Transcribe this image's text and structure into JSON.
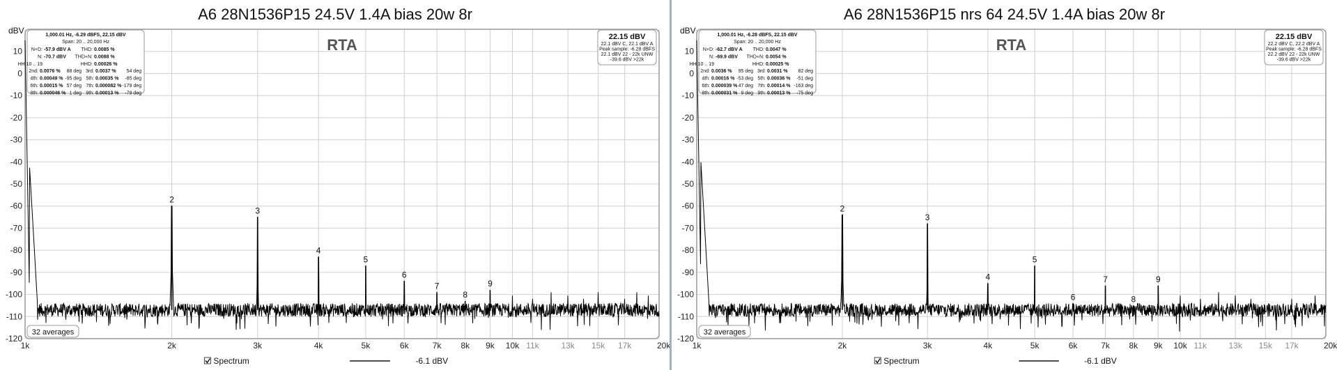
{
  "chart_data": [
    {
      "type": "line",
      "title": "A6 28N1536P15 24.5V 1.4A bias 20w 8r",
      "overlay_label": "RTA",
      "ylabel": "dBV",
      "xlabel_unit": "Hz",
      "ylim": [
        -120,
        20
      ],
      "xlim": [
        1000,
        20000
      ],
      "x_scale": "log",
      "grid": true,
      "y_ticks": [
        10,
        0,
        -10,
        -20,
        -30,
        -40,
        -50,
        -60,
        -70,
        -80,
        -90,
        -100,
        -110,
        -120
      ],
      "x_ticks": [
        {
          "value": 1000,
          "label": "1k",
          "major": true
        },
        {
          "value": 2000,
          "label": "2k",
          "major": true
        },
        {
          "value": 3000,
          "label": "3k",
          "major": true
        },
        {
          "value": 4000,
          "label": "4k",
          "major": true
        },
        {
          "value": 5000,
          "label": "5k",
          "major": true
        },
        {
          "value": 6000,
          "label": "6k",
          "major": true
        },
        {
          "value": 7000,
          "label": "7k",
          "major": true
        },
        {
          "value": 8000,
          "label": "8k",
          "major": true
        },
        {
          "value": 9000,
          "label": "9k",
          "major": true
        },
        {
          "value": 10000,
          "label": "10k",
          "major": true
        },
        {
          "value": 11000,
          "label": "11k",
          "major": false
        },
        {
          "value": 13000,
          "label": "13k",
          "major": false
        },
        {
          "value": 15000,
          "label": "15k",
          "major": false
        },
        {
          "value": 17000,
          "label": "17k",
          "major": false
        },
        {
          "value": 20000,
          "label": "20kHz",
          "major": true
        }
      ],
      "noise_floor_dBV": -107,
      "harmonics": [
        {
          "label": "2",
          "freq": 2000,
          "level": -60
        },
        {
          "label": "3",
          "freq": 3000,
          "level": -65
        },
        {
          "label": "4",
          "freq": 4000,
          "level": -83
        },
        {
          "label": "5",
          "freq": 5000,
          "level": -87
        },
        {
          "label": "6",
          "freq": 6000,
          "level": -94
        },
        {
          "label": "7",
          "freq": 7000,
          "level": -99
        },
        {
          "label": "8",
          "freq": 8000,
          "level": -103
        },
        {
          "label": "9",
          "freq": 9000,
          "level": -98
        }
      ],
      "stats": {
        "header": "1,000.01 Hz, -6.29 dBFS, 22.15 dBV",
        "span": "Span: 20 .. 20,000 Hz",
        "rows": [
          [
            "N+D:",
            "-57.9 dBV A",
            "THD:",
            "0.0085 %",
            ""
          ],
          [
            "N:",
            "-70.7 dBV",
            "THD+N:",
            "0.0088 %",
            ""
          ],
          [
            "HH 10 .. 19",
            "",
            "HHD:",
            "0.00026 %",
            ""
          ],
          [
            "2nd:",
            "0.0076 %",
            "88 deg",
            "3rd:",
            "0.0037 %",
            "54 deg"
          ],
          [
            "4th:",
            "0.00049 %",
            "-95 deg",
            "5th:",
            "0.00035 %",
            "-85 deg"
          ],
          [
            "6th:",
            "0.00015 %",
            "57 deg",
            "7th:",
            "0.000082 %",
            "-179 deg"
          ],
          [
            "8th:",
            "0.000046 %",
            "1 deg",
            "9th:",
            "0.00013 %",
            "-79 deg"
          ]
        ]
      },
      "level_box": {
        "main": "22.15 dBV",
        "lines": [
          "22.1 dBV C, 22.1 dBV A",
          "Peak sample: -6.28 dBFS",
          "22.1 dBV 22 - 22k UNW",
          "-39.6 dBV >22k"
        ]
      },
      "averages": "32 averages",
      "legend": {
        "spectrum": "Spectrum",
        "level": "-6.1 dBV"
      }
    },
    {
      "type": "line",
      "title": "A6 28N1536P15 nrs 64 24.5V 1.4A bias 20w 8r",
      "overlay_label": "RTA",
      "ylabel": "dBV",
      "xlabel_unit": "Hz",
      "ylim": [
        -120,
        20
      ],
      "xlim": [
        1000,
        20000
      ],
      "x_scale": "log",
      "grid": true,
      "y_ticks": [
        10,
        0,
        -10,
        -20,
        -30,
        -40,
        -50,
        -60,
        -70,
        -80,
        -90,
        -100,
        -110,
        -120
      ],
      "x_ticks": [
        {
          "value": 1000,
          "label": "1k",
          "major": true
        },
        {
          "value": 2000,
          "label": "2k",
          "major": true
        },
        {
          "value": 3000,
          "label": "3k",
          "major": true
        },
        {
          "value": 4000,
          "label": "4k",
          "major": true
        },
        {
          "value": 5000,
          "label": "5k",
          "major": true
        },
        {
          "value": 6000,
          "label": "6k",
          "major": true
        },
        {
          "value": 7000,
          "label": "7k",
          "major": true
        },
        {
          "value": 8000,
          "label": "8k",
          "major": true
        },
        {
          "value": 9000,
          "label": "9k",
          "major": true
        },
        {
          "value": 10000,
          "label": "10k",
          "major": true
        },
        {
          "value": 11000,
          "label": "11k",
          "major": false
        },
        {
          "value": 13000,
          "label": "13k",
          "major": false
        },
        {
          "value": 15000,
          "label": "15k",
          "major": false
        },
        {
          "value": 17000,
          "label": "17k",
          "major": false
        },
        {
          "value": 20000,
          "label": "20kHz",
          "major": true
        }
      ],
      "noise_floor_dBV": -107,
      "harmonics": [
        {
          "label": "2",
          "freq": 2000,
          "level": -64
        },
        {
          "label": "3",
          "freq": 3000,
          "level": -68
        },
        {
          "label": "4",
          "freq": 4000,
          "level": -95
        },
        {
          "label": "5",
          "freq": 5000,
          "level": -87
        },
        {
          "label": "6",
          "freq": 6000,
          "level": -104
        },
        {
          "label": "7",
          "freq": 7000,
          "level": -96
        },
        {
          "label": "8",
          "freq": 8000,
          "level": -105
        },
        {
          "label": "9",
          "freq": 9000,
          "level": -96
        }
      ],
      "stats": {
        "header": "1,000.01 Hz, -6.28 dBFS, 22.15 dBV",
        "span": "Span: 20 .. 20,000 Hz",
        "rows": [
          [
            "N+D:",
            "-62.7 dBV A",
            "THD:",
            "0.0047 %",
            ""
          ],
          [
            "N:",
            "-69.9 dBV",
            "THD+N:",
            "0.0054 %",
            ""
          ],
          [
            "HH 10 .. 19",
            "",
            "HHD:",
            "0.00025 %",
            ""
          ],
          [
            "2nd:",
            "0.0036 %",
            "95 deg",
            "3rd:",
            "0.0031 %",
            "82 deg"
          ],
          [
            "4th:",
            "0.00016 %",
            "-53 deg",
            "5th:",
            "0.00036 %",
            "-51 deg"
          ],
          [
            "6th:",
            "0.000039 %",
            "47 deg",
            "7th:",
            "0.00014 %",
            "-163 deg"
          ],
          [
            "8th:",
            "0.000031 %",
            "9 deg",
            "9th:",
            "0.00013 %",
            "-75 deg"
          ]
        ]
      },
      "level_box": {
        "main": "22.15 dBV",
        "lines": [
          "22.2 dBV C, 22.2 dBV A",
          "Peak sample: -6.28 dBFS",
          "22.2 dBV 22 - 22k UNW",
          "-39.6 dBV >22k"
        ]
      },
      "averages": "32 averages",
      "legend": {
        "spectrum": "Spectrum",
        "level": "-6.1 dBV"
      }
    }
  ],
  "colors": {
    "trace": "#000000",
    "grid": "#cfcfcf",
    "frame": "#9a9a9a",
    "divider": "#9fb3c4"
  }
}
